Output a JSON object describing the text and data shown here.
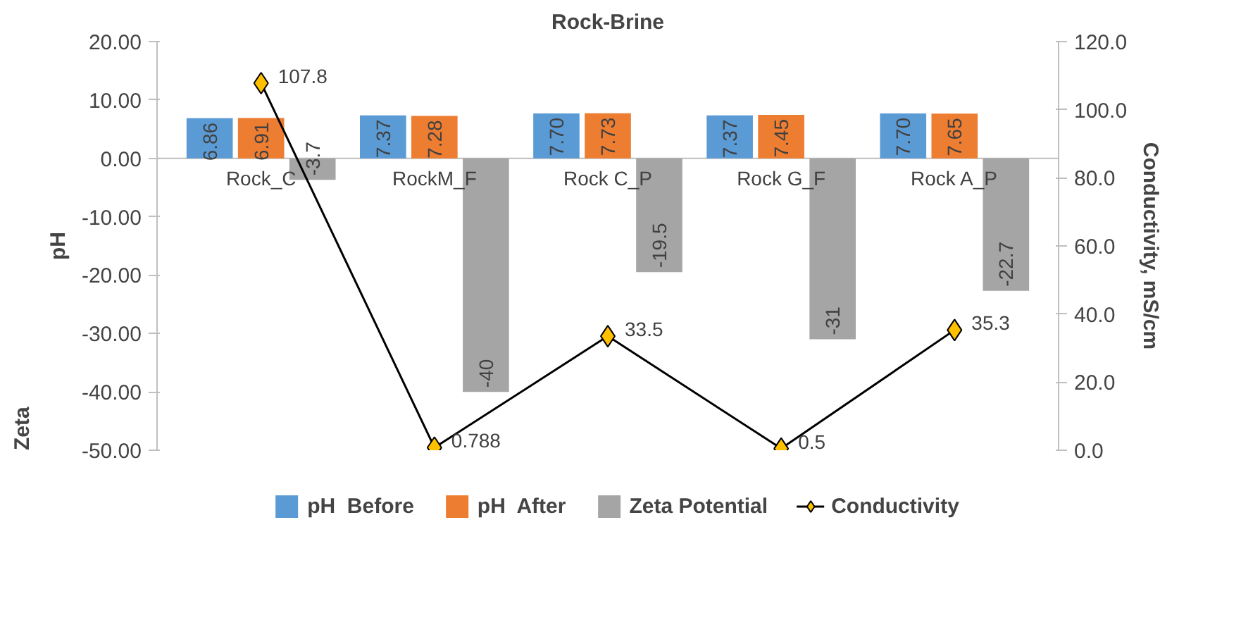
{
  "chart_data": {
    "type": "bar",
    "title": "Rock-Brine",
    "ylabel": "pH",
    "y2label": "Conductivity, mS/cm",
    "annotations": [
      "Zeta"
    ],
    "categories": [
      "Rock_C",
      "RockM_F",
      "Rock C_P",
      "Rock G_F",
      "Rock A_P"
    ],
    "series": [
      {
        "name": "pH  Before",
        "color": "#5b9bd5",
        "values": [
          6.86,
          7.37,
          7.7,
          7.37,
          7.7
        ],
        "value_labels": [
          "6.86",
          "7.37",
          "7.70",
          "7.37",
          "7.70"
        ]
      },
      {
        "name": "pH  After",
        "color": "#ed7d31",
        "values": [
          6.91,
          7.28,
          7.73,
          7.45,
          7.65
        ],
        "value_labels": [
          "6.91",
          "7.28",
          "7.73",
          "7.45",
          "7.65"
        ]
      },
      {
        "name": "Zeta Potential",
        "color": "#a5a5a5",
        "values": [
          -3.7,
          -40,
          -19.5,
          -31,
          -22.7
        ],
        "value_labels": [
          "-3.7",
          "-40",
          "-19.5",
          "-31",
          "-22.7"
        ]
      },
      {
        "name": "Conductivity",
        "type": "line",
        "axis": "y2",
        "color": "#ffc000",
        "values": [
          107.8,
          0.788,
          33.5,
          0.5,
          35.3
        ],
        "value_labels": [
          "107.8",
          "0.788",
          "33.5",
          "0.5",
          "35.3"
        ]
      }
    ],
    "ylim": [
      -50,
      20
    ],
    "yticks": [
      {
        "value": -50,
        "label": "-50.00"
      },
      {
        "value": -40,
        "label": "-40.00"
      },
      {
        "value": -30,
        "label": "-30.00"
      },
      {
        "value": -20,
        "label": "-20.00"
      },
      {
        "value": -10,
        "label": "-10.00"
      },
      {
        "value": 0,
        "label": "0.00"
      },
      {
        "value": 10,
        "label": "10.00"
      },
      {
        "value": 20,
        "label": "20.00"
      }
    ],
    "y2lim": [
      0,
      120
    ],
    "y2ticks": [
      {
        "value": 0,
        "label": "0.0"
      },
      {
        "value": 20,
        "label": "20.0"
      },
      {
        "value": 40,
        "label": "40.0"
      },
      {
        "value": 60,
        "label": "60.0"
      },
      {
        "value": 80,
        "label": "80.0"
      },
      {
        "value": 100,
        "label": "100.0"
      },
      {
        "value": 120,
        "label": "120.0"
      }
    ],
    "legend": "bottom",
    "marker": "diamond"
  }
}
